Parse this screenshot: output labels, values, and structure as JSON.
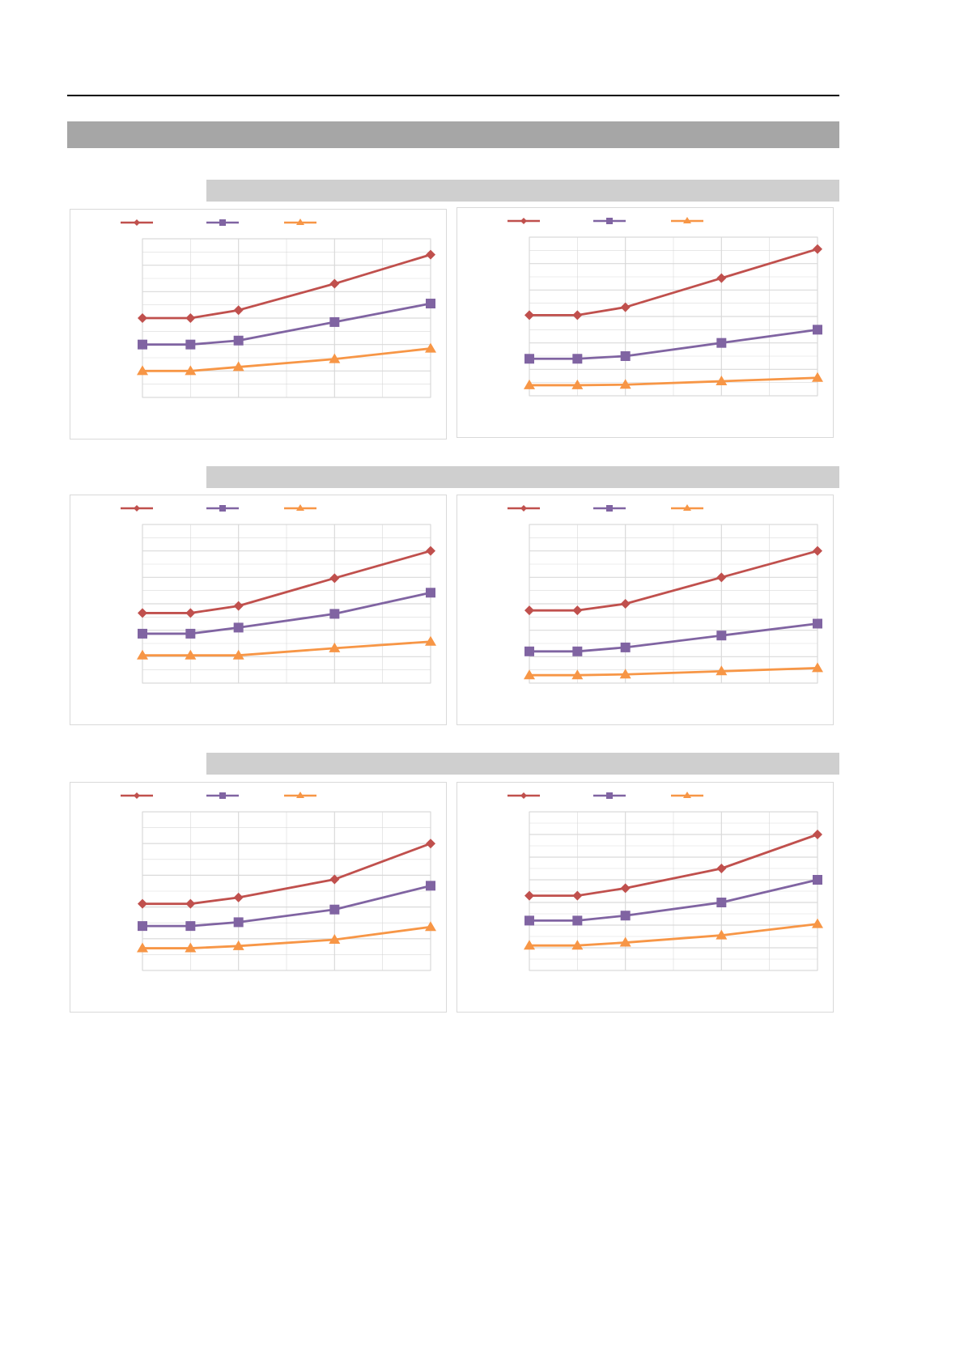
{
  "colors": {
    "series1": "#c0504d",
    "series2": "#8064a2",
    "series3": "#f79646",
    "grid": "#d9d9d9",
    "section_band": "#a6a6a6",
    "group_band": "#cfcfcf"
  },
  "legend_position": "top",
  "chart_data": [
    {
      "type": "line",
      "x": [
        0,
        1,
        2,
        4,
        6
      ],
      "xlim": [
        0,
        6
      ],
      "ylim": [
        0,
        6
      ],
      "grid": true,
      "legend": "top",
      "series": [
        {
          "marker": "diamond",
          "values": [
            3.0,
            3.0,
            3.3,
            4.3,
            5.4
          ]
        },
        {
          "marker": "square",
          "values": [
            2.0,
            2.0,
            2.15,
            2.85,
            3.55
          ]
        },
        {
          "marker": "triangle",
          "values": [
            1.0,
            1.0,
            1.15,
            1.45,
            1.85
          ]
        }
      ]
    },
    {
      "type": "line",
      "x": [
        0,
        1,
        2,
        4,
        6
      ],
      "xlim": [
        0,
        6
      ],
      "ylim": [
        0,
        6
      ],
      "grid": true,
      "legend": "top",
      "series": [
        {
          "marker": "diamond",
          "values": [
            3.05,
            3.05,
            3.35,
            4.45,
            5.55
          ]
        },
        {
          "marker": "square",
          "values": [
            1.4,
            1.4,
            1.5,
            2.0,
            2.5
          ]
        },
        {
          "marker": "triangle",
          "values": [
            0.4,
            0.4,
            0.42,
            0.55,
            0.68
          ]
        }
      ]
    },
    {
      "type": "line",
      "x": [
        0,
        1,
        2,
        4,
        6
      ],
      "xlim": [
        0,
        6
      ],
      "ylim": [
        0,
        6
      ],
      "grid": true,
      "legend": "top",
      "series": [
        {
          "marker": "diamond",
          "values": [
            2.65,
            2.65,
            2.92,
            3.97,
            5.0
          ]
        },
        {
          "marker": "square",
          "values": [
            1.87,
            1.87,
            2.1,
            2.62,
            3.42
          ]
        },
        {
          "marker": "triangle",
          "values": [
            1.05,
            1.05,
            1.05,
            1.32,
            1.57
          ]
        }
      ]
    },
    {
      "type": "line",
      "x": [
        0,
        1,
        2,
        4,
        6
      ],
      "xlim": [
        0,
        6
      ],
      "ylim": [
        0,
        6
      ],
      "grid": true,
      "legend": "top",
      "series": [
        {
          "marker": "diamond",
          "values": [
            2.75,
            2.75,
            3.0,
            4.0,
            5.0
          ]
        },
        {
          "marker": "square",
          "values": [
            1.2,
            1.2,
            1.35,
            1.8,
            2.25
          ]
        },
        {
          "marker": "triangle",
          "values": [
            0.3,
            0.3,
            0.33,
            0.45,
            0.57
          ]
        }
      ]
    },
    {
      "type": "line",
      "x": [
        0,
        1,
        2,
        4,
        6
      ],
      "xlim": [
        0,
        6
      ],
      "ylim": [
        0,
        5
      ],
      "grid": true,
      "legend": "top",
      "series": [
        {
          "marker": "diamond",
          "values": [
            2.1,
            2.1,
            2.3,
            2.87,
            4.0
          ]
        },
        {
          "marker": "square",
          "values": [
            1.4,
            1.4,
            1.52,
            1.92,
            2.67
          ]
        },
        {
          "marker": "triangle",
          "values": [
            0.7,
            0.7,
            0.77,
            0.97,
            1.37
          ]
        }
      ]
    },
    {
      "type": "line",
      "x": [
        0,
        1,
        2,
        4,
        6
      ],
      "xlim": [
        0,
        6
      ],
      "ylim": [
        0,
        7
      ],
      "grid": true,
      "legend": "top",
      "series": [
        {
          "marker": "diamond",
          "values": [
            3.3,
            3.3,
            3.63,
            4.5,
            6.0
          ]
        },
        {
          "marker": "square",
          "values": [
            2.2,
            2.2,
            2.42,
            3.0,
            4.0
          ]
        },
        {
          "marker": "triangle",
          "values": [
            1.1,
            1.1,
            1.23,
            1.55,
            2.05
          ]
        }
      ]
    }
  ]
}
